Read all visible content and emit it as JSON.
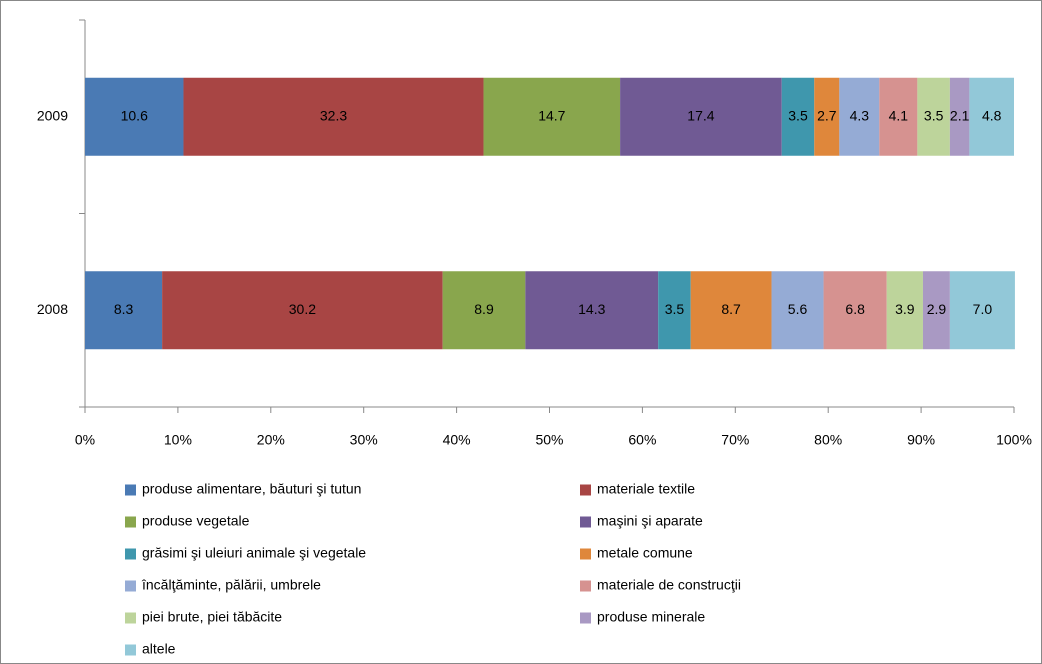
{
  "chart_data": {
    "type": "stacked_bar_horizontal",
    "categories": [
      "2009",
      "2008"
    ],
    "series": [
      {
        "name": "produse alimentare, băuturi şi tutun",
        "color": "#4a7ab4",
        "values": [
          10.6,
          8.3
        ]
      },
      {
        "name": "materiale textile",
        "color": "#a84544",
        "values": [
          32.3,
          30.2
        ]
      },
      {
        "name": "produse vegetale",
        "color": "#89a64d",
        "values": [
          14.7,
          8.9
        ]
      },
      {
        "name": "maşini şi aparate",
        "color": "#705a94",
        "values": [
          17.4,
          14.3
        ]
      },
      {
        "name": "grăsimi şi uleiuri animale şi vegetale",
        "color": "#3f97ad",
        "values": [
          3.5,
          3.5
        ]
      },
      {
        "name": "metale comune",
        "color": "#df873b",
        "values": [
          2.7,
          8.7
        ]
      },
      {
        "name": "încălţăminte, pălării, umbrele",
        "color": "#95abd5",
        "values": [
          4.3,
          5.6
        ]
      },
      {
        "name": "materiale de construcţii",
        "color": "#d69290",
        "values": [
          4.1,
          6.8
        ]
      },
      {
        "name": "piei brute, piei tăbăcite",
        "color": "#bdd49b",
        "values": [
          3.5,
          3.9
        ]
      },
      {
        "name": "produse minerale",
        "color": "#a999c3",
        "values": [
          2.1,
          2.9
        ]
      },
      {
        "name": "altele",
        "color": "#92c8d8",
        "values": [
          4.8,
          7.0
        ],
        "value_labels": [
          "4.8",
          "7.0"
        ]
      }
    ],
    "xlim": [
      0,
      100
    ],
    "xticks": [
      {
        "value": 0,
        "label": "0%"
      },
      {
        "value": 10,
        "label": "10%"
      },
      {
        "value": 20,
        "label": "20%"
      },
      {
        "value": 30,
        "label": "30%"
      },
      {
        "value": 40,
        "label": "40%"
      },
      {
        "value": 50,
        "label": "50%"
      },
      {
        "value": 60,
        "label": "60%"
      },
      {
        "value": 70,
        "label": "70%"
      },
      {
        "value": 80,
        "label": "80%"
      },
      {
        "value": 90,
        "label": "90%"
      },
      {
        "value": 100,
        "label": "100%"
      }
    ],
    "legend": "bottom"
  }
}
